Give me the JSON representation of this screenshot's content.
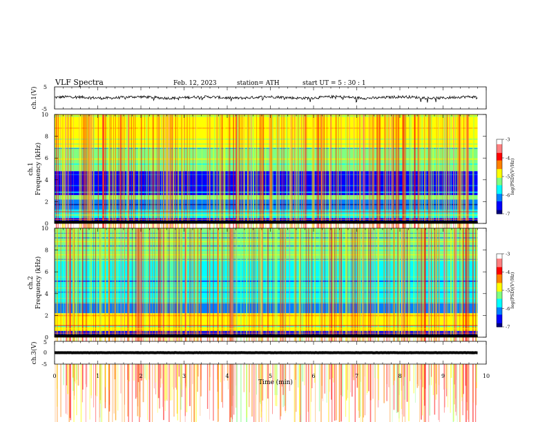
{
  "header": {
    "title": "VLF  Spectra",
    "date": "Feb. 12, 2023",
    "station": "station= ATH",
    "start": "start  UT  =    5  : 30 : 1"
  },
  "colors": {
    "spectrum": [
      "#000080",
      "#0000ff",
      "#0080ff",
      "#00ffff",
      "#80ff80",
      "#ffff00",
      "#ff8000",
      "#ff0000",
      "#ff8080",
      "#ffffff"
    ],
    "trace": "#000000"
  },
  "chart_data": [
    {
      "type": "line",
      "panel": "ch1-waveform",
      "ylabel": "ch.1(V)",
      "ylim": [
        -5,
        5
      ],
      "yticks": [
        "5",
        "-5"
      ],
      "xlim": [
        0,
        10
      ],
      "x_extent": 9.8,
      "baseline": 0.2,
      "noise": 0.6
    },
    {
      "type": "heatmap",
      "panel": "ch1-spectrogram",
      "ylabel": [
        "ch.1",
        "Frequency  (kHz)"
      ],
      "ylim": [
        0,
        10
      ],
      "yticks": [
        "0",
        "2",
        "4",
        "6",
        "8",
        "10"
      ],
      "xlim": [
        0,
        10
      ],
      "x_extent": 9.8,
      "bands": [
        {
          "from": 0,
          "to": 0.5,
          "level": -6.6
        },
        {
          "from": 0.5,
          "to": 1.2,
          "level": -5.8
        },
        {
          "from": 1.2,
          "to": 2.2,
          "level": -6.2
        },
        {
          "from": 2.2,
          "to": 2.6,
          "level": -5.4
        },
        {
          "from": 2.6,
          "to": 4.8,
          "level": -6.4
        },
        {
          "from": 4.8,
          "to": 7.0,
          "level": -5.3
        },
        {
          "from": 7.0,
          "to": 10,
          "level": -4.9
        }
      ],
      "colorbar": {
        "label": "log(PSD)(V²/Hz)",
        "ticks": [
          "-3",
          "-4",
          "-5",
          "-6",
          "-7"
        ],
        "range": [
          -7,
          -3
        ]
      }
    },
    {
      "type": "heatmap",
      "panel": "ch2-spectrogram",
      "ylabel": [
        "ch.2",
        "Frequency  (kHz)"
      ],
      "ylim": [
        0,
        10
      ],
      "yticks": [
        "0",
        "2",
        "4",
        "6",
        "8",
        "10"
      ],
      "xlim": [
        0,
        10
      ],
      "x_extent": 9.8,
      "bands": [
        {
          "from": 0,
          "to": 0.6,
          "level": -6.4
        },
        {
          "from": 0.6,
          "to": 2.2,
          "level": -5.0
        },
        {
          "from": 2.2,
          "to": 3.2,
          "level": -5.9
        },
        {
          "from": 3.2,
          "to": 4.8,
          "level": -5.6
        },
        {
          "from": 4.8,
          "to": 7.0,
          "level": -5.8
        },
        {
          "from": 7.0,
          "to": 10,
          "level": -5.4
        }
      ],
      "colorbar": {
        "label": "log(PSD)(V²/Hz)",
        "ticks": [
          "-3",
          "-4",
          "-5",
          "-6",
          "-7"
        ],
        "range": [
          -7,
          -3
        ]
      }
    },
    {
      "type": "line",
      "panel": "ch3-waveform",
      "ylabel": "ch.3(V)",
      "ylim": [
        -5,
        5
      ],
      "yticks": [
        "5",
        "0",
        "-5"
      ],
      "xlim": [
        0,
        10
      ],
      "x_extent": 9.8,
      "baseline": 0,
      "noise": 0.05
    }
  ],
  "xaxis": {
    "label": "Time  (min)",
    "ticks": [
      "0",
      "1",
      "2",
      "3",
      "4",
      "5",
      "6",
      "7",
      "8",
      "9",
      "10"
    ]
  }
}
